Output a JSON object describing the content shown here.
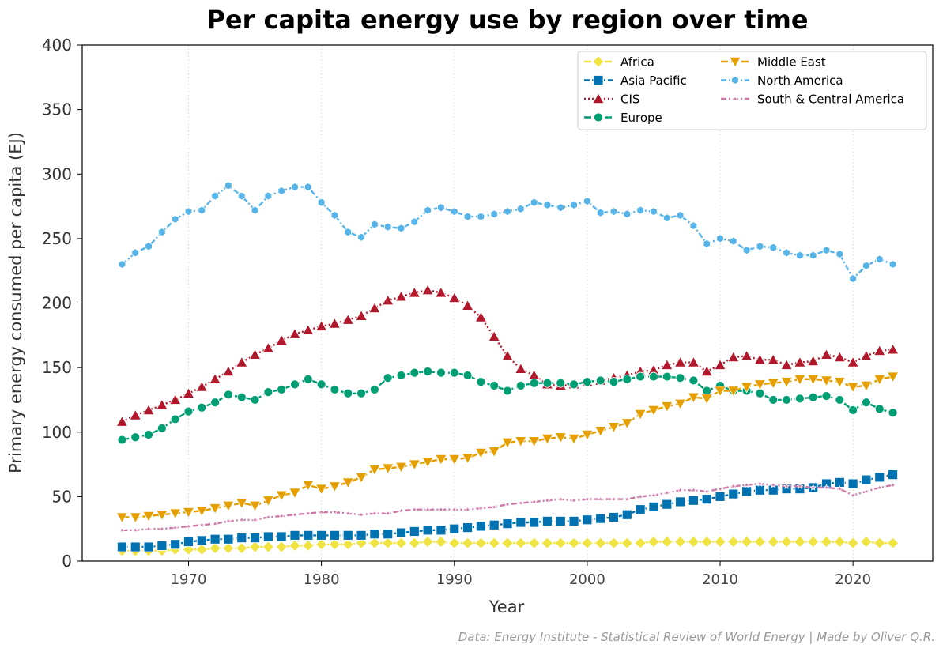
{
  "chart_data": {
    "type": "line",
    "title": "Per capita energy use by region over time",
    "xlabel": "Year",
    "ylabel": "Primary energy consumed per capita (EJ)",
    "xlim": [
      1962,
      2026
    ],
    "ylim": [
      0,
      400
    ],
    "xticks": [
      1970,
      1980,
      1990,
      2000,
      2010,
      2020
    ],
    "yticks": [
      0,
      50,
      100,
      150,
      200,
      250,
      300,
      350,
      400
    ],
    "grid": "x-only, dotted",
    "legend_position": "top-right",
    "source": "Data: Energy Institute - Statistical Review of World Energy | Made by Oliver Q.R.",
    "x": [
      1965,
      1966,
      1967,
      1968,
      1969,
      1970,
      1971,
      1972,
      1973,
      1974,
      1975,
      1976,
      1977,
      1978,
      1979,
      1980,
      1981,
      1982,
      1983,
      1984,
      1985,
      1986,
      1987,
      1988,
      1989,
      1990,
      1991,
      1992,
      1993,
      1994,
      1995,
      1996,
      1997,
      1998,
      1999,
      2000,
      2001,
      2002,
      2003,
      2004,
      2005,
      2006,
      2007,
      2008,
      2009,
      2010,
      2011,
      2012,
      2013,
      2014,
      2015,
      2016,
      2017,
      2018,
      2019,
      2020,
      2021,
      2022,
      2023
    ],
    "series": [
      {
        "name": "Africa",
        "color": "#F0E442",
        "marker": "diamond",
        "dash": "dashed",
        "values": [
          8,
          8,
          8,
          8,
          9,
          9,
          9,
          10,
          10,
          10,
          11,
          11,
          11,
          12,
          12,
          13,
          13,
          13,
          14,
          14,
          14,
          14,
          14,
          15,
          15,
          14,
          14,
          14,
          14,
          14,
          14,
          14,
          14,
          14,
          14,
          14,
          14,
          14,
          14,
          14,
          15,
          15,
          15,
          15,
          15,
          15,
          15,
          15,
          15,
          15,
          15,
          15,
          15,
          15,
          15,
          14,
          15,
          14,
          14
        ]
      },
      {
        "name": "Asia Pacific",
        "color": "#0072B2",
        "marker": "square",
        "dash": "dashdot",
        "values": [
          11,
          11,
          11,
          12,
          13,
          15,
          16,
          17,
          17,
          18,
          18,
          19,
          19,
          20,
          20,
          20,
          20,
          20,
          20,
          21,
          21,
          22,
          23,
          24,
          24,
          25,
          26,
          27,
          28,
          29,
          30,
          30,
          31,
          31,
          31,
          32,
          33,
          34,
          36,
          40,
          42,
          44,
          46,
          47,
          48,
          50,
          52,
          54,
          55,
          55,
          56,
          56,
          57,
          60,
          61,
          60,
          63,
          65,
          67
        ]
      },
      {
        "name": "CIS",
        "color": "#B2182B",
        "marker": "triangle-up",
        "dash": "dotted",
        "values": [
          108,
          113,
          117,
          121,
          125,
          130,
          135,
          141,
          147,
          154,
          160,
          165,
          171,
          176,
          179,
          182,
          184,
          187,
          190,
          196,
          202,
          205,
          208,
          210,
          208,
          204,
          198,
          189,
          174,
          159,
          149,
          144,
          137,
          136,
          137,
          139,
          140,
          142,
          144,
          147,
          148,
          152,
          154,
          154,
          147,
          152,
          158,
          159,
          156,
          156,
          152,
          154,
          155,
          160,
          158,
          154,
          159,
          163,
          164
        ]
      },
      {
        "name": "Europe",
        "color": "#009E73",
        "marker": "circle",
        "dash": "dashed",
        "values": [
          94,
          96,
          98,
          103,
          110,
          116,
          119,
          123,
          129,
          127,
          125,
          131,
          133,
          137,
          141,
          137,
          133,
          130,
          130,
          133,
          142,
          144,
          146,
          147,
          146,
          146,
          144,
          139,
          136,
          132,
          136,
          138,
          138,
          138,
          137,
          139,
          140,
          139,
          141,
          143,
          143,
          143,
          142,
          140,
          132,
          136,
          132,
          132,
          130,
          125,
          125,
          126,
          127,
          128,
          125,
          117,
          123,
          118,
          115
        ]
      },
      {
        "name": "Middle East",
        "color": "#E69F00",
        "marker": "triangle-down",
        "dash": "dashed",
        "values": [
          34,
          34,
          35,
          36,
          37,
          38,
          39,
          41,
          43,
          45,
          43,
          47,
          51,
          53,
          59,
          56,
          58,
          61,
          65,
          71,
          72,
          73,
          75,
          77,
          79,
          79,
          80,
          84,
          85,
          92,
          93,
          93,
          95,
          96,
          95,
          98,
          101,
          104,
          107,
          114,
          117,
          120,
          122,
          127,
          126,
          132,
          132,
          135,
          137,
          138,
          139,
          141,
          141,
          140,
          139,
          135,
          136,
          141,
          143
        ]
      },
      {
        "name": "North America",
        "color": "#56B4E9",
        "marker": "hexagon",
        "dash": "dashdot",
        "values": [
          230,
          239,
          244,
          255,
          265,
          271,
          272,
          283,
          291,
          283,
          272,
          283,
          287,
          290,
          290,
          278,
          268,
          255,
          251,
          261,
          259,
          258,
          263,
          272,
          274,
          271,
          267,
          267,
          269,
          271,
          273,
          278,
          276,
          274,
          276,
          279,
          270,
          271,
          269,
          272,
          271,
          266,
          268,
          260,
          246,
          250,
          248,
          241,
          244,
          243,
          239,
          237,
          237,
          241,
          238,
          219,
          229,
          234,
          230
        ]
      },
      {
        "name": "South & Central America",
        "color": "#CC79A7",
        "marker": "star",
        "dash": "dashdot",
        "values": [
          24,
          24,
          25,
          25,
          26,
          27,
          28,
          29,
          31,
          32,
          32,
          34,
          35,
          36,
          37,
          38,
          38,
          37,
          36,
          37,
          37,
          39,
          40,
          40,
          40,
          40,
          40,
          41,
          42,
          44,
          45,
          46,
          47,
          48,
          47,
          48,
          48,
          48,
          48,
          50,
          51,
          53,
          55,
          55,
          54,
          56,
          58,
          59,
          60,
          59,
          58,
          58,
          57,
          57,
          56,
          51,
          54,
          57,
          59
        ]
      }
    ]
  }
}
